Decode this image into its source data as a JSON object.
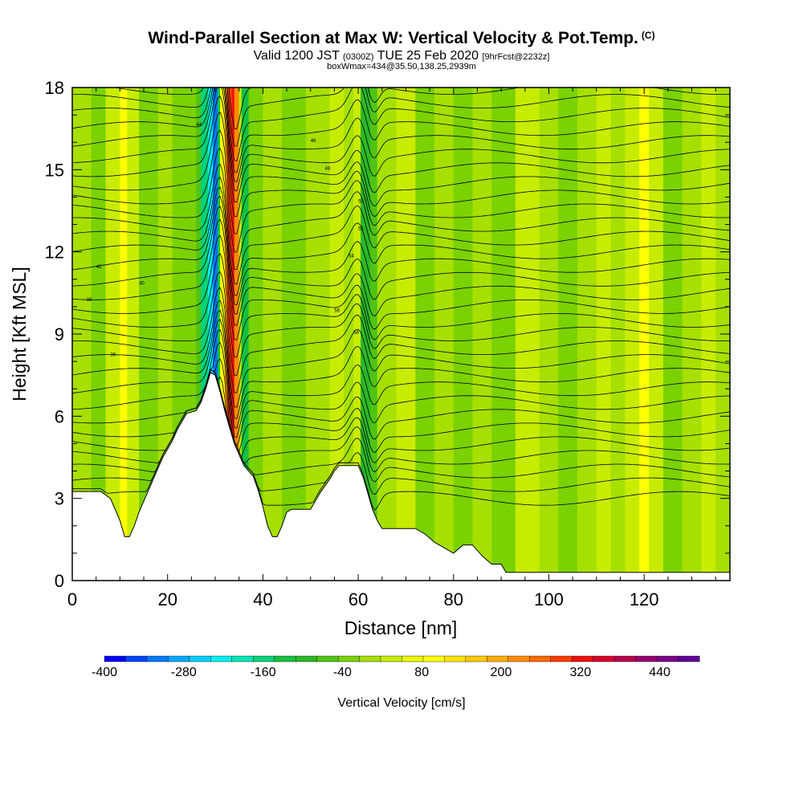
{
  "header": {
    "title": "Wind-Parallel Section at Max W: Vertical Velocity & Pot.Temp.",
    "copyright": "(C)",
    "valid_a": "Valid 1200 JST",
    "valid_b": "(0300Z)",
    "valid_c": "TUE 25 Feb 2020",
    "valid_d": "[9hrFcst@2232z]",
    "boxwmax": "boxWmax=434@35.50,138.25,2939m"
  },
  "chart_data": {
    "type": "heatmap",
    "xlabel": "Distance [nm]",
    "ylabel": "Height [Kft MSL]",
    "xlim": [
      0,
      138
    ],
    "ylim": [
      0,
      18
    ],
    "x_ticks": [
      "0",
      "20",
      "40",
      "60",
      "80",
      "100",
      "120"
    ],
    "y_ticks": [
      "0",
      "3",
      "6",
      "9",
      "12",
      "15",
      "18"
    ],
    "colorbar": {
      "label": "Vertical Velocity [cm/s]",
      "range": [
        -400,
        500
      ],
      "tick_labels": [
        "-400",
        "-280",
        "-160",
        "-40",
        "80",
        "200",
        "320",
        "440"
      ],
      "colors": [
        "#0000f5",
        "#0044ff",
        "#0078ff",
        "#00a8ff",
        "#00d0ff",
        "#00f0f0",
        "#00e6b4",
        "#00d278",
        "#14c040",
        "#2ab828",
        "#50c414",
        "#7ad200",
        "#a6e000",
        "#c8ec00",
        "#e8f800",
        "#ffff00",
        "#ffe400",
        "#ffc800",
        "#ffac00",
        "#ff8c00",
        "#ff6a00",
        "#ff3c00",
        "#f01010",
        "#d8002a",
        "#b8004e",
        "#980070",
        "#7a0088",
        "#5e0096"
      ]
    },
    "max_w_cm_s": 434,
    "terrain_kft": [
      [
        0,
        3.25
      ],
      [
        2,
        3.25
      ],
      [
        4,
        3.25
      ],
      [
        6,
        3.25
      ],
      [
        8,
        3.0
      ],
      [
        10,
        2.2
      ],
      [
        11,
        1.6
      ],
      [
        12,
        1.6
      ],
      [
        13,
        2.0
      ],
      [
        14,
        2.5
      ],
      [
        15,
        2.9
      ],
      [
        16,
        3.3
      ],
      [
        17,
        3.7
      ],
      [
        18,
        4.1
      ],
      [
        19,
        4.5
      ],
      [
        20,
        4.8
      ],
      [
        21,
        5.1
      ],
      [
        22,
        5.5
      ],
      [
        23,
        5.8
      ],
      [
        24,
        6.1
      ],
      [
        26,
        6.2
      ],
      [
        27,
        6.5
      ],
      [
        28,
        7.0
      ],
      [
        29,
        7.6
      ],
      [
        30,
        7.5
      ],
      [
        31,
        6.9
      ],
      [
        32,
        6.2
      ],
      [
        33,
        5.6
      ],
      [
        34,
        5.0
      ],
      [
        35,
        4.6
      ],
      [
        36,
        4.2
      ],
      [
        38,
        3.8
      ],
      [
        39,
        3.3
      ],
      [
        40,
        2.7
      ],
      [
        41,
        2.0
      ],
      [
        42,
        1.6
      ],
      [
        43,
        1.6
      ],
      [
        44,
        2.0
      ],
      [
        45,
        2.5
      ],
      [
        46,
        2.6
      ],
      [
        48,
        2.6
      ],
      [
        50,
        2.6
      ],
      [
        52,
        3.2
      ],
      [
        54,
        3.7
      ],
      [
        55,
        4.0
      ],
      [
        56,
        4.2
      ],
      [
        58,
        4.2
      ],
      [
        60,
        4.2
      ],
      [
        61,
        3.8
      ],
      [
        62,
        3.2
      ],
      [
        63,
        2.6
      ],
      [
        64,
        2.2
      ],
      [
        65,
        1.9
      ],
      [
        66,
        1.9
      ],
      [
        70,
        1.9
      ],
      [
        72,
        1.9
      ],
      [
        74,
        1.7
      ],
      [
        76,
        1.4
      ],
      [
        78,
        1.2
      ],
      [
        80,
        1.0
      ],
      [
        82,
        1.3
      ],
      [
        84,
        1.3
      ],
      [
        86,
        0.9
      ],
      [
        88,
        0.6
      ],
      [
        90,
        0.6
      ],
      [
        91,
        0.3
      ],
      [
        92,
        0.3
      ],
      [
        138,
        0.3
      ]
    ],
    "theta_contours": {
      "base_height_kft": 3.0,
      "spacing_kft": 0.5,
      "count": 31,
      "labels": [
        "36",
        "38",
        "40",
        "42",
        "44",
        "46",
        "48",
        "50",
        "52",
        "54",
        "56",
        "58"
      ]
    }
  }
}
